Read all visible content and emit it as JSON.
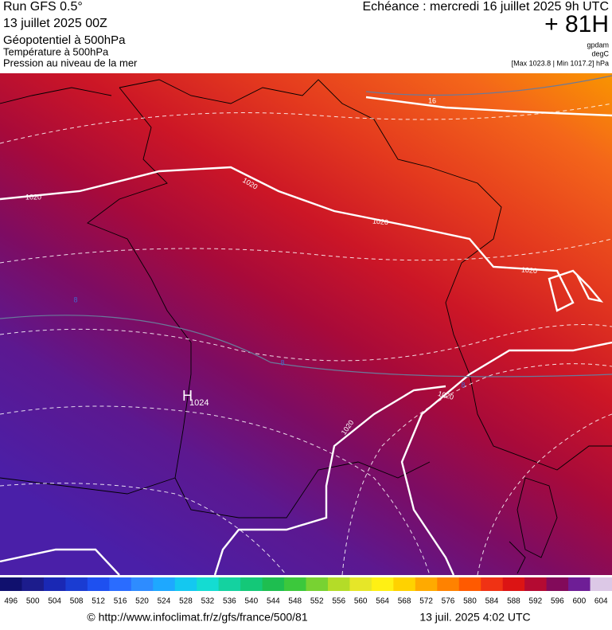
{
  "header": {
    "run": "Run GFS 0.5°",
    "run_date": "13 juillet 2025 00Z",
    "field": "Géopotentiel à 500hPa",
    "field2": "Température à 500hPa",
    "field3": "Pression au niveau de la mer",
    "valid": "Echéance : mercredi 16 juillet 2025 9h UTC",
    "lead": "+ 81H",
    "unit1": "gpdam",
    "unit2": "degC",
    "range": "[Max 1023.8 | Min 1017.2] hPa"
  },
  "map": {
    "high": {
      "symbol": "H",
      "pressure": "1024"
    },
    "contour_labels": [
      "1020",
      "1020",
      "1020",
      "1020",
      "1020",
      "1020",
      "16",
      "8",
      "8",
      "8"
    ]
  },
  "colorbar": {
    "ticks": [
      496,
      500,
      504,
      508,
      512,
      516,
      520,
      524,
      528,
      532,
      536,
      540,
      544,
      548,
      552,
      556,
      560,
      564,
      568,
      572,
      576,
      580,
      584,
      588,
      592,
      596,
      600,
      604
    ],
    "colors": [
      "#10106e",
      "#1c1c8c",
      "#1a28b4",
      "#1a3cd2",
      "#1e50f0",
      "#2a6cff",
      "#2e8cff",
      "#1ea8ff",
      "#14c8f0",
      "#14dcd2",
      "#14d2a0",
      "#14c878",
      "#1ebe50",
      "#3cc83c",
      "#78d232",
      "#b4dc28",
      "#e6e628",
      "#fff014",
      "#ffd200",
      "#ffaa00",
      "#ff8200",
      "#ff5a00",
      "#f03214",
      "#dc1414",
      "#b40a32",
      "#820a5a",
      "#6e1e96",
      "#dcc8e6"
    ]
  },
  "footer": {
    "source": "© http://www.infoclimat.fr/z/gfs/france/500/81",
    "timestamp": "13 juil. 2025  4:02 UTC"
  }
}
